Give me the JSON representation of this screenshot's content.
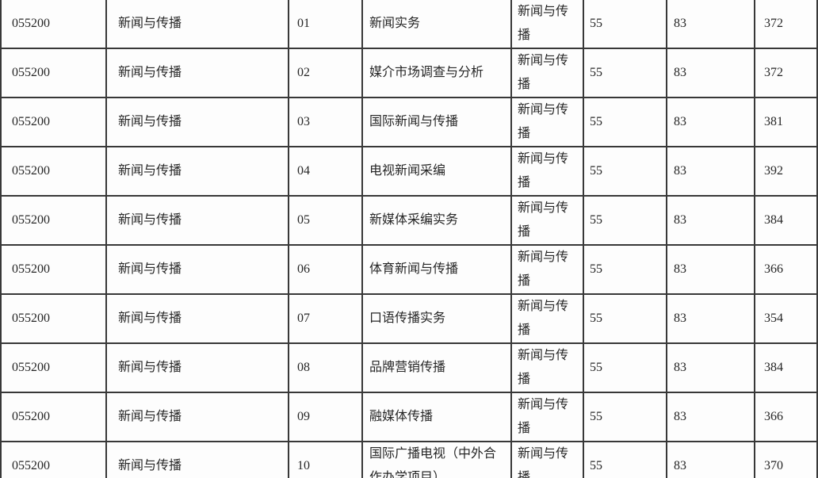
{
  "colors": {
    "border": "#383838",
    "text": "#262626",
    "background": "#ffffff"
  },
  "chart_data": {
    "type": "table",
    "headers_visible": false,
    "rows": [
      [
        "055200",
        "新闻与传播",
        "01",
        "新闻实务",
        "新闻与传播",
        "55",
        "83",
        "372"
      ],
      [
        "055200",
        "新闻与传播",
        "02",
        "媒介市场调查与分析",
        "新闻与传播",
        "55",
        "83",
        "372"
      ],
      [
        "055200",
        "新闻与传播",
        "03",
        "国际新闻与传播",
        "新闻与传播",
        "55",
        "83",
        "381"
      ],
      [
        "055200",
        "新闻与传播",
        "04",
        "电视新闻采编",
        "新闻与传播",
        "55",
        "83",
        "392"
      ],
      [
        "055200",
        "新闻与传播",
        "05",
        "新媒体采编实务",
        "新闻与传播",
        "55",
        "83",
        "384"
      ],
      [
        "055200",
        "新闻与传播",
        "06",
        "体育新闻与传播",
        "新闻与传播",
        "55",
        "83",
        "366"
      ],
      [
        "055200",
        "新闻与传播",
        "07",
        "口语传播实务",
        "新闻与传播",
        "55",
        "83",
        "354"
      ],
      [
        "055200",
        "新闻与传播",
        "08",
        "品牌营销传播",
        "新闻与传播",
        "55",
        "83",
        "384"
      ],
      [
        "055200",
        "新闻与传播",
        "09",
        "融媒体传播",
        "新闻与传播",
        "55",
        "83",
        "366"
      ],
      [
        "055200",
        "新闻与传播",
        "10",
        "国际广播电视（中外合作办学项目）",
        "新闻与传播",
        "55",
        "83",
        "370"
      ]
    ]
  }
}
